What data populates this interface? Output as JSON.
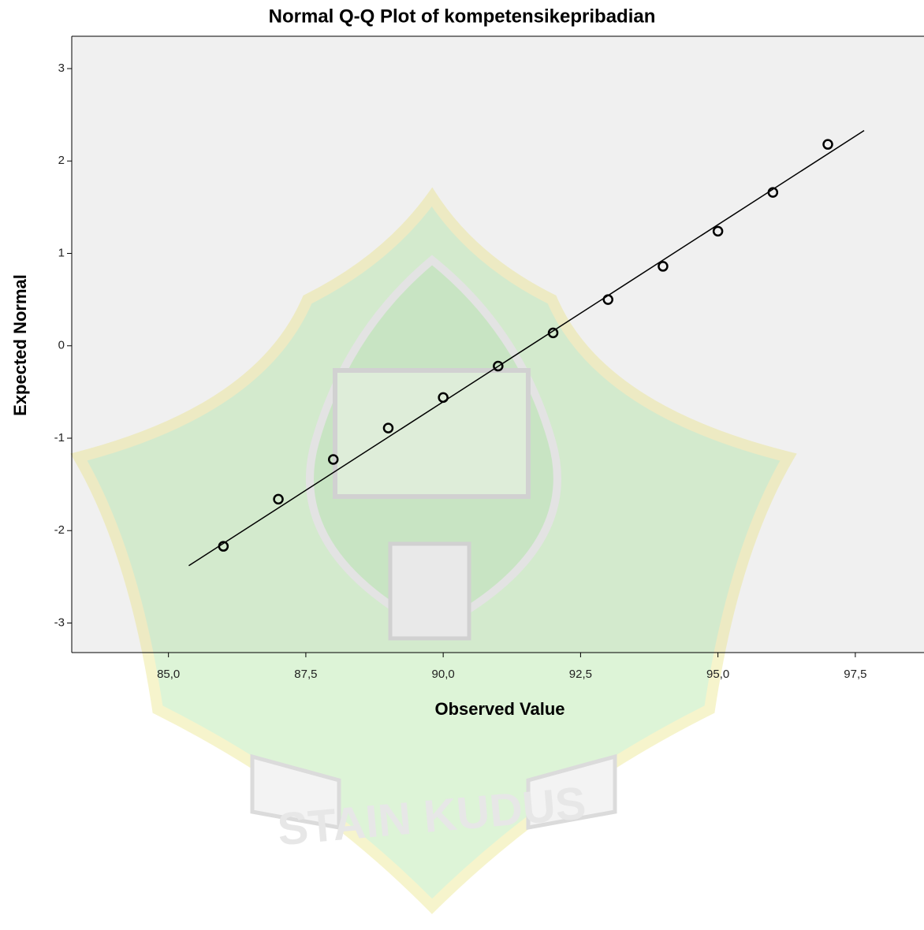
{
  "chart_data": {
    "type": "scatter",
    "title": "Normal Q-Q Plot of kompetensikepribadian",
    "xlabel": "Observed Value",
    "ylabel": "Expected Normal",
    "watermark": "STAIN KUDUS",
    "x": [
      86,
      87,
      88,
      89,
      90,
      91,
      92,
      93,
      94,
      95,
      96,
      97
    ],
    "series": [
      {
        "color": "#000000",
        "values": [
          -2.17,
          -1.66,
          -1.23,
          -0.89,
          -0.56,
          -0.22,
          0.14,
          0.5,
          0.86,
          1.24,
          1.66,
          2.18
        ]
      }
    ],
    "reference_line": {
      "color": "#000000",
      "x": [
        85.37,
        97.66
      ],
      "y": [
        -2.38,
        2.33
      ]
    },
    "xlim": [
      83.24,
      98.75
    ],
    "ylim": [
      -3.32,
      3.35
    ],
    "xticks": [
      {
        "value": 85,
        "label": "85,0"
      },
      {
        "value": 87.5,
        "label": "87,5"
      },
      {
        "value": 90,
        "label": "90,0"
      },
      {
        "value": 92.5,
        "label": "92,5"
      },
      {
        "value": 95,
        "label": "95,0"
      },
      {
        "value": 97.5,
        "label": "97,5"
      }
    ],
    "yticks": [
      -3,
      -2,
      -1,
      0,
      1,
      2,
      3
    ]
  }
}
